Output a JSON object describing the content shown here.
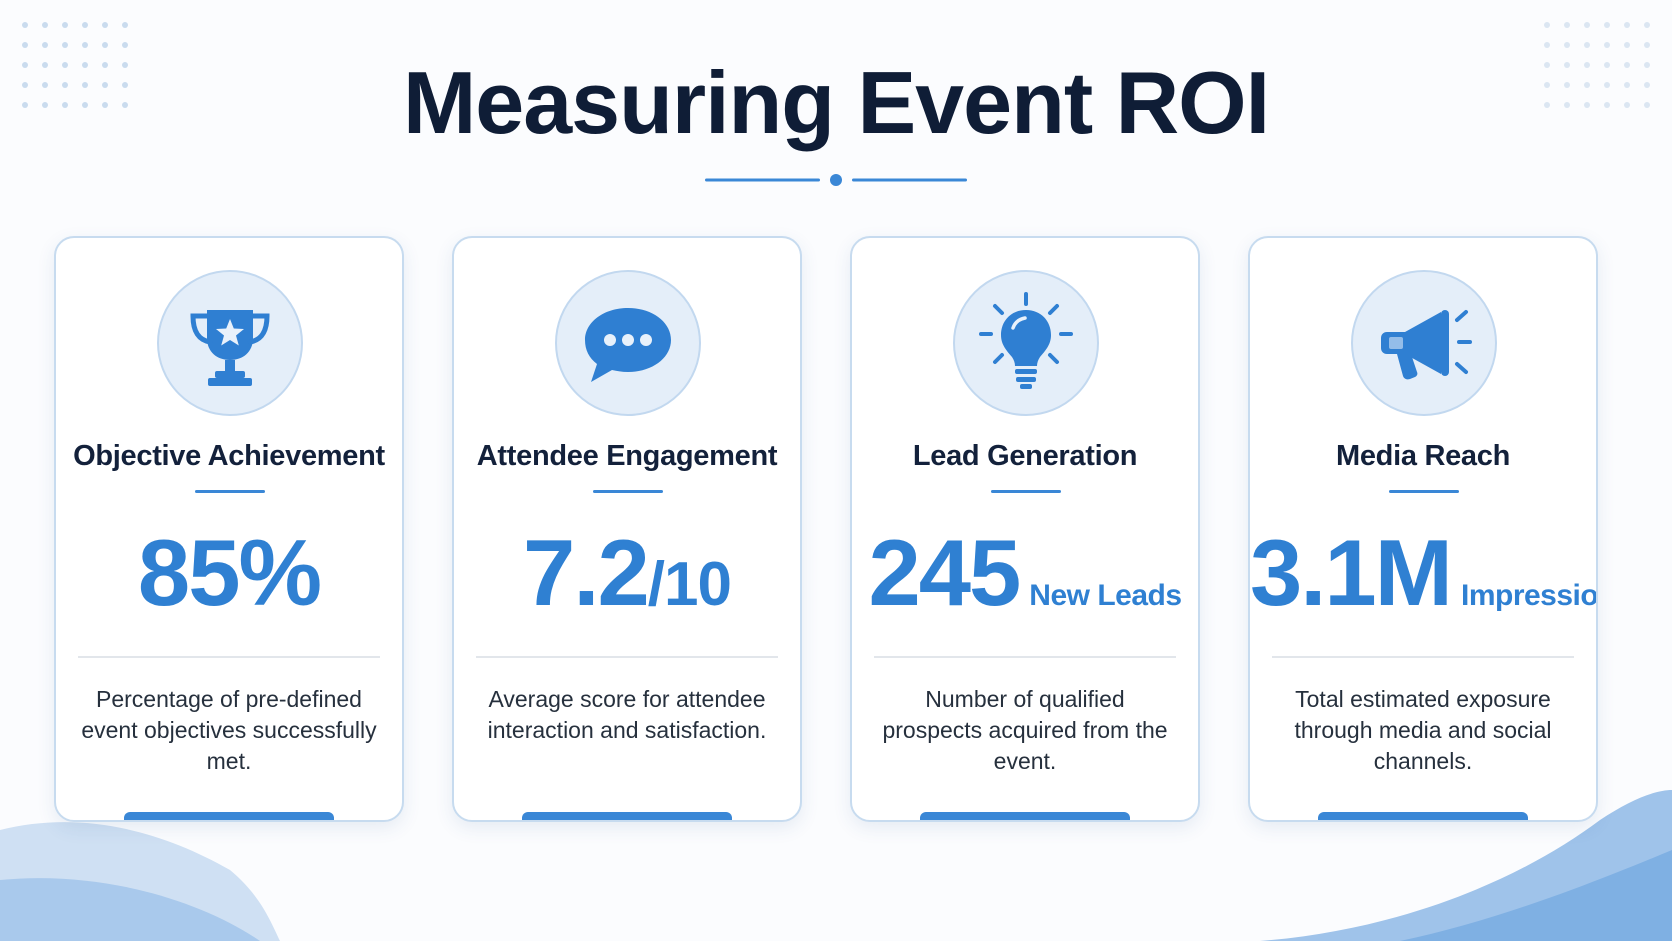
{
  "title": "Measuring Event ROI",
  "colors": {
    "accent": "#2f80d2",
    "title": "#0f1d36",
    "icon_bg": "#e4eef9",
    "card_border": "#c7dbef"
  },
  "cards": [
    {
      "icon": "trophy-icon",
      "title": "Objective Achievement",
      "value": "85%",
      "suffix": "",
      "unit": "",
      "description": "Percentage of pre-defined event objectives successfully met."
    },
    {
      "icon": "chat-bubble-icon",
      "title": "Attendee Engagement",
      "value": "7.2",
      "suffix": "/10",
      "unit": "",
      "description": "Average score for attendee interaction and satisfaction."
    },
    {
      "icon": "lightbulb-icon",
      "title": "Lead Generation",
      "value": "245",
      "suffix": "",
      "unit": "New Leads",
      "description": "Number of qualified prospects acquired from the event."
    },
    {
      "icon": "megaphone-icon",
      "title": "Media Reach",
      "value": "3.1M",
      "suffix": "",
      "unit": "Impressions",
      "description": "Total estimated exposure through media and social channels."
    }
  ]
}
